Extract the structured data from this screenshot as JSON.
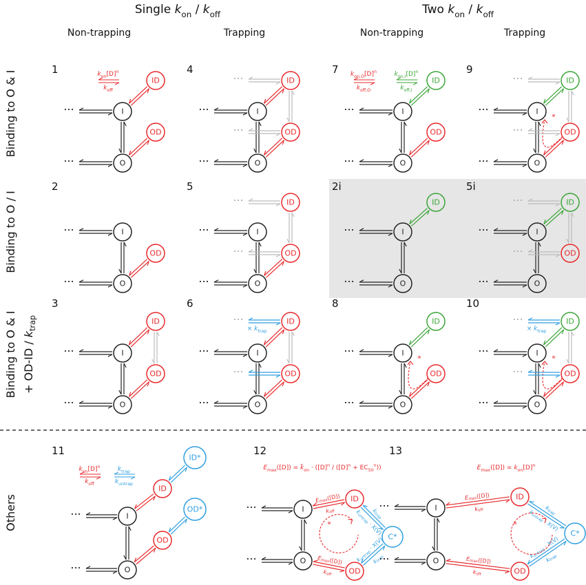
{
  "ellipsis": "···",
  "headers": [
    {
      "title": [
        [
          "Single ",
          "n"
        ],
        [
          "k",
          "i"
        ],
        [
          "on",
          "sub"
        ],
        [
          " / ",
          "n"
        ],
        [
          "k",
          "i"
        ],
        [
          "off",
          "sub"
        ]
      ],
      "subs": [
        "Non-trapping",
        "Trapping"
      ]
    },
    {
      "title": [
        [
          "Two ",
          "n"
        ],
        [
          "k",
          "i"
        ],
        [
          "on",
          "sub"
        ],
        [
          " / ",
          "n"
        ],
        [
          "k",
          "i"
        ],
        [
          "off",
          "sub"
        ]
      ],
      "subs": [
        "Non-trapping",
        "Trapping"
      ]
    }
  ],
  "rows": [
    {
      "lines": [
        [
          [
            "Binding to O & I",
            "n"
          ]
        ]
      ]
    },
    {
      "lines": [
        [
          [
            "Binding to O / I",
            "n"
          ]
        ]
      ]
    },
    {
      "lines": [
        [
          [
            "Binding to O & I",
            "n"
          ]
        ],
        [
          [
            "+ OD-ID / ",
            "n"
          ],
          [
            "k",
            "i"
          ],
          [
            "trap",
            "sub"
          ]
        ]
      ]
    },
    {
      "lines": [
        [
          [
            "Others",
            "n"
          ]
        ]
      ]
    }
  ],
  "panels": [
    {
      "number": "1",
      "nodes": [
        "I",
        "O",
        "ID",
        "OD"
      ],
      "rates": [
        [
          [
            "k",
            "i"
          ],
          [
            "on",
            "sub"
          ],
          [
            "[D]",
            "n"
          ],
          [
            "n",
            "sup"
          ]
        ],
        [
          [
            "k",
            "i"
          ],
          [
            "off",
            "sub"
          ]
        ]
      ]
    },
    {
      "number": "4",
      "nodes": [
        "I",
        "O",
        "ID",
        "OD"
      ]
    },
    {
      "number": "7",
      "nodes": [
        "I",
        "O",
        "ID",
        "OD"
      ],
      "rates": [
        [
          [
            "k",
            "i"
          ],
          [
            "on,O",
            "sub"
          ],
          [
            "[D]",
            "n"
          ],
          [
            "n",
            "sup"
          ]
        ],
        [
          [
            "k",
            "i"
          ],
          [
            "off,O",
            "sub"
          ]
        ],
        [
          [
            "k",
            "i"
          ],
          [
            "on,I",
            "sub"
          ],
          [
            "[D]",
            "n"
          ],
          [
            "n",
            "sup"
          ]
        ],
        [
          [
            "k",
            "i"
          ],
          [
            "off,I",
            "sub"
          ]
        ]
      ]
    },
    {
      "number": "9",
      "nodes": [
        "I",
        "O",
        "ID",
        "OD"
      ],
      "star": "*"
    },
    {
      "number": "2",
      "nodes": [
        "I",
        "O",
        "OD"
      ]
    },
    {
      "number": "5",
      "nodes": [
        "I",
        "O",
        "ID",
        "OD"
      ]
    },
    {
      "number": "2i",
      "nodes": [
        "I",
        "O",
        "ID"
      ]
    },
    {
      "number": "5i",
      "nodes": [
        "I",
        "O",
        "ID",
        "OD"
      ]
    },
    {
      "number": "3",
      "nodes": [
        "I",
        "O",
        "ID",
        "OD"
      ]
    },
    {
      "number": "6",
      "nodes": [
        "I",
        "O",
        "ID",
        "OD"
      ],
      "rates": [
        [
          [
            "× ",
            "n"
          ],
          [
            "k",
            "i"
          ],
          [
            "trap",
            "sub"
          ]
        ]
      ]
    },
    {
      "number": "8",
      "nodes": [
        "I",
        "O",
        "ID",
        "OD"
      ],
      "star": "*"
    },
    {
      "number": "10",
      "nodes": [
        "I",
        "O",
        "ID",
        "OD"
      ],
      "star": "*",
      "rates": [
        [
          [
            "× ",
            "n"
          ],
          [
            "k",
            "i"
          ],
          [
            "trap",
            "sub"
          ]
        ]
      ]
    },
    {
      "number": "11",
      "nodes": [
        "I",
        "O",
        "ID",
        "OD",
        "ID*",
        "OD*"
      ],
      "rates": [
        [
          [
            "k",
            "i"
          ],
          [
            "on",
            "sub"
          ],
          [
            "[D]",
            "n"
          ],
          [
            "n",
            "sup"
          ]
        ],
        [
          [
            "k",
            "i"
          ],
          [
            "off",
            "sub"
          ]
        ],
        [
          [
            "k",
            "i"
          ],
          [
            "trap",
            "sub"
          ]
        ],
        [
          [
            "k",
            "i"
          ],
          [
            "untrap",
            "sub"
          ]
        ]
      ]
    },
    {
      "number": "12",
      "nodes": [
        "I",
        "O",
        "ID",
        "OD",
        "C*"
      ],
      "star": "*",
      "rates": [
        [
          [
            "E",
            "i"
          ],
          [
            "max",
            "sub"
          ],
          [
            "([D]) = ",
            "n"
          ],
          [
            "k̂",
            "i"
          ],
          [
            "on",
            "sub"
          ],
          [
            " · ([D]",
            "n"
          ],
          [
            "n",
            "sup"
          ],
          [
            " / ([D]",
            "n"
          ],
          [
            "n",
            "sup"
          ],
          [
            " + EC",
            "n"
          ],
          [
            "50",
            "sub"
          ],
          [
            "n",
            "sup"
          ],
          [
            "))",
            "n"
          ]
        ],
        [
          [
            "E",
            "i"
          ],
          [
            "max",
            "sub"
          ],
          [
            "([D])",
            "n"
          ]
        ],
        [
          [
            "k",
            "i"
          ],
          [
            "off",
            "sub"
          ]
        ],
        [
          [
            "k",
            "i"
          ],
          [
            "trap",
            "sub"
          ]
        ],
        [
          [
            "k",
            "i"
          ],
          [
            "untrap",
            "sub"
          ],
          [
            " · X(V)",
            "n"
          ]
        ],
        [
          [
            "k",
            "i"
          ],
          [
            "trap",
            "sub"
          ]
        ],
        [
          [
            "k",
            "i"
          ],
          [
            "untrap",
            "sub"
          ],
          [
            " · X(V)",
            "n"
          ]
        ],
        [
          [
            "E",
            "i"
          ],
          [
            "max",
            "sub"
          ],
          [
            "([D])",
            "n"
          ]
        ],
        [
          [
            "k",
            "i"
          ],
          [
            "off",
            "sub"
          ]
        ]
      ]
    },
    {
      "number": "13",
      "nodes": [
        "I",
        "O",
        "ID",
        "OD",
        "C*"
      ],
      "star": "*",
      "rates": [
        [
          [
            "E",
            "i"
          ],
          [
            "max",
            "sub"
          ],
          [
            "([D]) = ",
            "n"
          ],
          [
            "k",
            "i"
          ],
          [
            "on",
            "sub"
          ],
          [
            "[D]",
            "n"
          ],
          [
            "n",
            "sup"
          ]
        ],
        [
          [
            "E",
            "i"
          ],
          [
            "max",
            "sub"
          ],
          [
            "([D])",
            "n"
          ]
        ],
        [
          [
            "k",
            "i"
          ],
          [
            "off",
            "sub"
          ]
        ],
        [
          [
            "k",
            "i"
          ],
          [
            "trap",
            "sub"
          ]
        ],
        [
          [
            "k",
            "i"
          ],
          [
            "untrap",
            "sub"
          ],
          [
            " · X(V)",
            "n"
          ]
        ],
        [
          [
            "k",
            "i"
          ],
          [
            "trap",
            "sub"
          ]
        ],
        [
          [
            "k",
            "i"
          ],
          [
            "untrap",
            "sub"
          ],
          [
            " · X(V)",
            "n"
          ]
        ],
        [
          [
            "E",
            "i"
          ],
          [
            "max",
            "sub"
          ],
          [
            "([D])",
            "n"
          ]
        ],
        [
          [
            "k",
            "i"
          ],
          [
            "off",
            "sub"
          ]
        ]
      ]
    }
  ]
}
